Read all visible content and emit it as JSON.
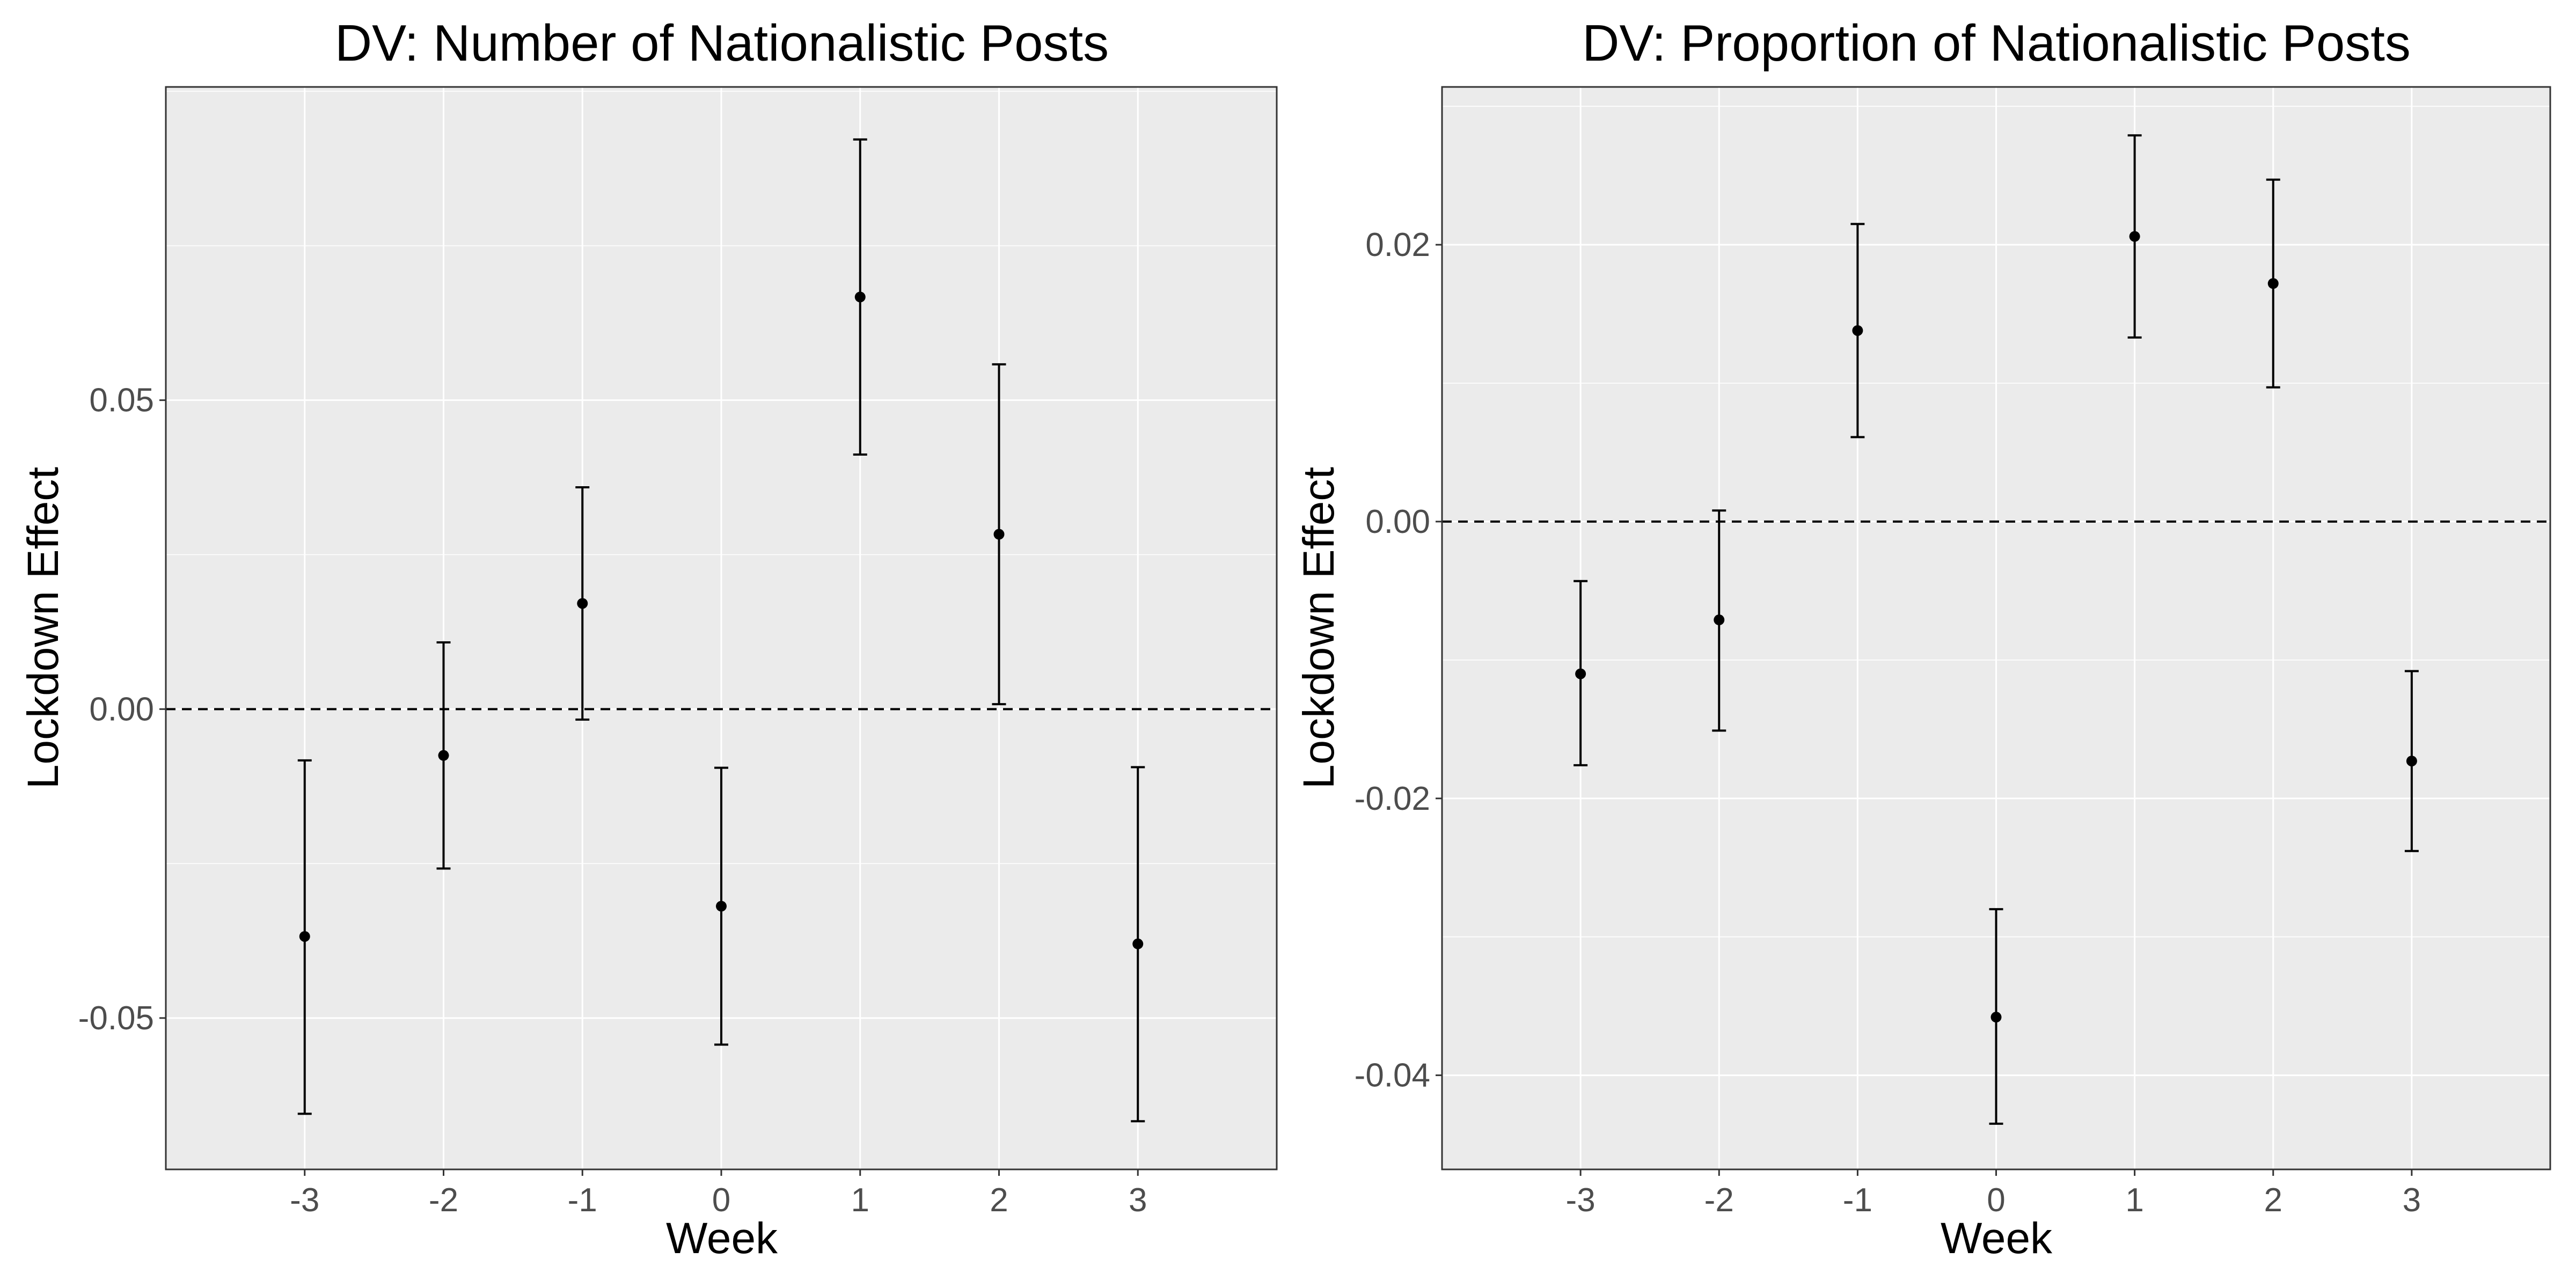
{
  "chart_data": [
    {
      "type": "scatter",
      "title": "DV: Number of Nationalistic Posts",
      "xlabel": "Week",
      "ylabel": "Lockdown Effect",
      "x_ticks": [
        "-3",
        "-2",
        "-1",
        "0",
        "1",
        "2",
        "3"
      ],
      "y_ticks": [
        {
          "value": -0.05,
          "label": "-0.05"
        },
        {
          "value": 0.0,
          "label": "0.00"
        },
        {
          "value": 0.05,
          "label": "0.05"
        }
      ],
      "ylim": [
        -0.0745,
        0.1007
      ],
      "reference_line": {
        "y": 0,
        "style": "dashed"
      },
      "grid": true,
      "legend": "none",
      "series": [
        {
          "x": [
            -3,
            -2,
            -1,
            0,
            1,
            2,
            3
          ],
          "estimate": [
            -0.0368,
            -0.0075,
            0.0171,
            -0.0319,
            0.0667,
            0.0283,
            -0.038
          ],
          "ci_low": [
            -0.0655,
            -0.0258,
            -0.0017,
            -0.0543,
            0.0412,
            0.0008,
            -0.0667
          ],
          "ci_high": [
            -0.0083,
            0.0108,
            0.0359,
            -0.0095,
            0.0922,
            0.0558,
            -0.0094
          ]
        }
      ],
      "colors": {
        "panel": "#ebebeb",
        "grid": "#ffffff",
        "marks": "#000000",
        "ticks": "#4d4d4d"
      }
    },
    {
      "type": "scatter",
      "title": "DV: Proportion of Nationalistic Posts",
      "xlabel": "Week",
      "ylabel": "Lockdown Effect",
      "x_ticks": [
        "-3",
        "-2",
        "-1",
        "0",
        "1",
        "2",
        "3"
      ],
      "y_ticks": [
        {
          "value": -0.04,
          "label": "-0.04"
        },
        {
          "value": -0.02,
          "label": "-0.02"
        },
        {
          "value": 0.0,
          "label": "0.00"
        },
        {
          "value": 0.02,
          "label": "0.02"
        }
      ],
      "ylim": [
        -0.0468,
        0.0314
      ],
      "reference_line": {
        "y": 0,
        "style": "dashed"
      },
      "grid": true,
      "legend": "none",
      "series": [
        {
          "x": [
            -3,
            -2,
            -1,
            0,
            1,
            2,
            3
          ],
          "estimate": [
            -0.011,
            -0.0071,
            0.0138,
            -0.0358,
            0.0206,
            0.0172,
            -0.0173
          ],
          "ci_low": [
            -0.0176,
            -0.0151,
            0.0061,
            -0.0435,
            0.0133,
            0.0097,
            -0.0238
          ],
          "ci_high": [
            -0.0043,
            0.0008,
            0.0215,
            -0.028,
            0.0279,
            0.0247,
            -0.0108
          ]
        }
      ],
      "colors": {
        "panel": "#ebebeb",
        "grid": "#ffffff",
        "marks": "#000000",
        "ticks": "#4d4d4d"
      }
    }
  ]
}
